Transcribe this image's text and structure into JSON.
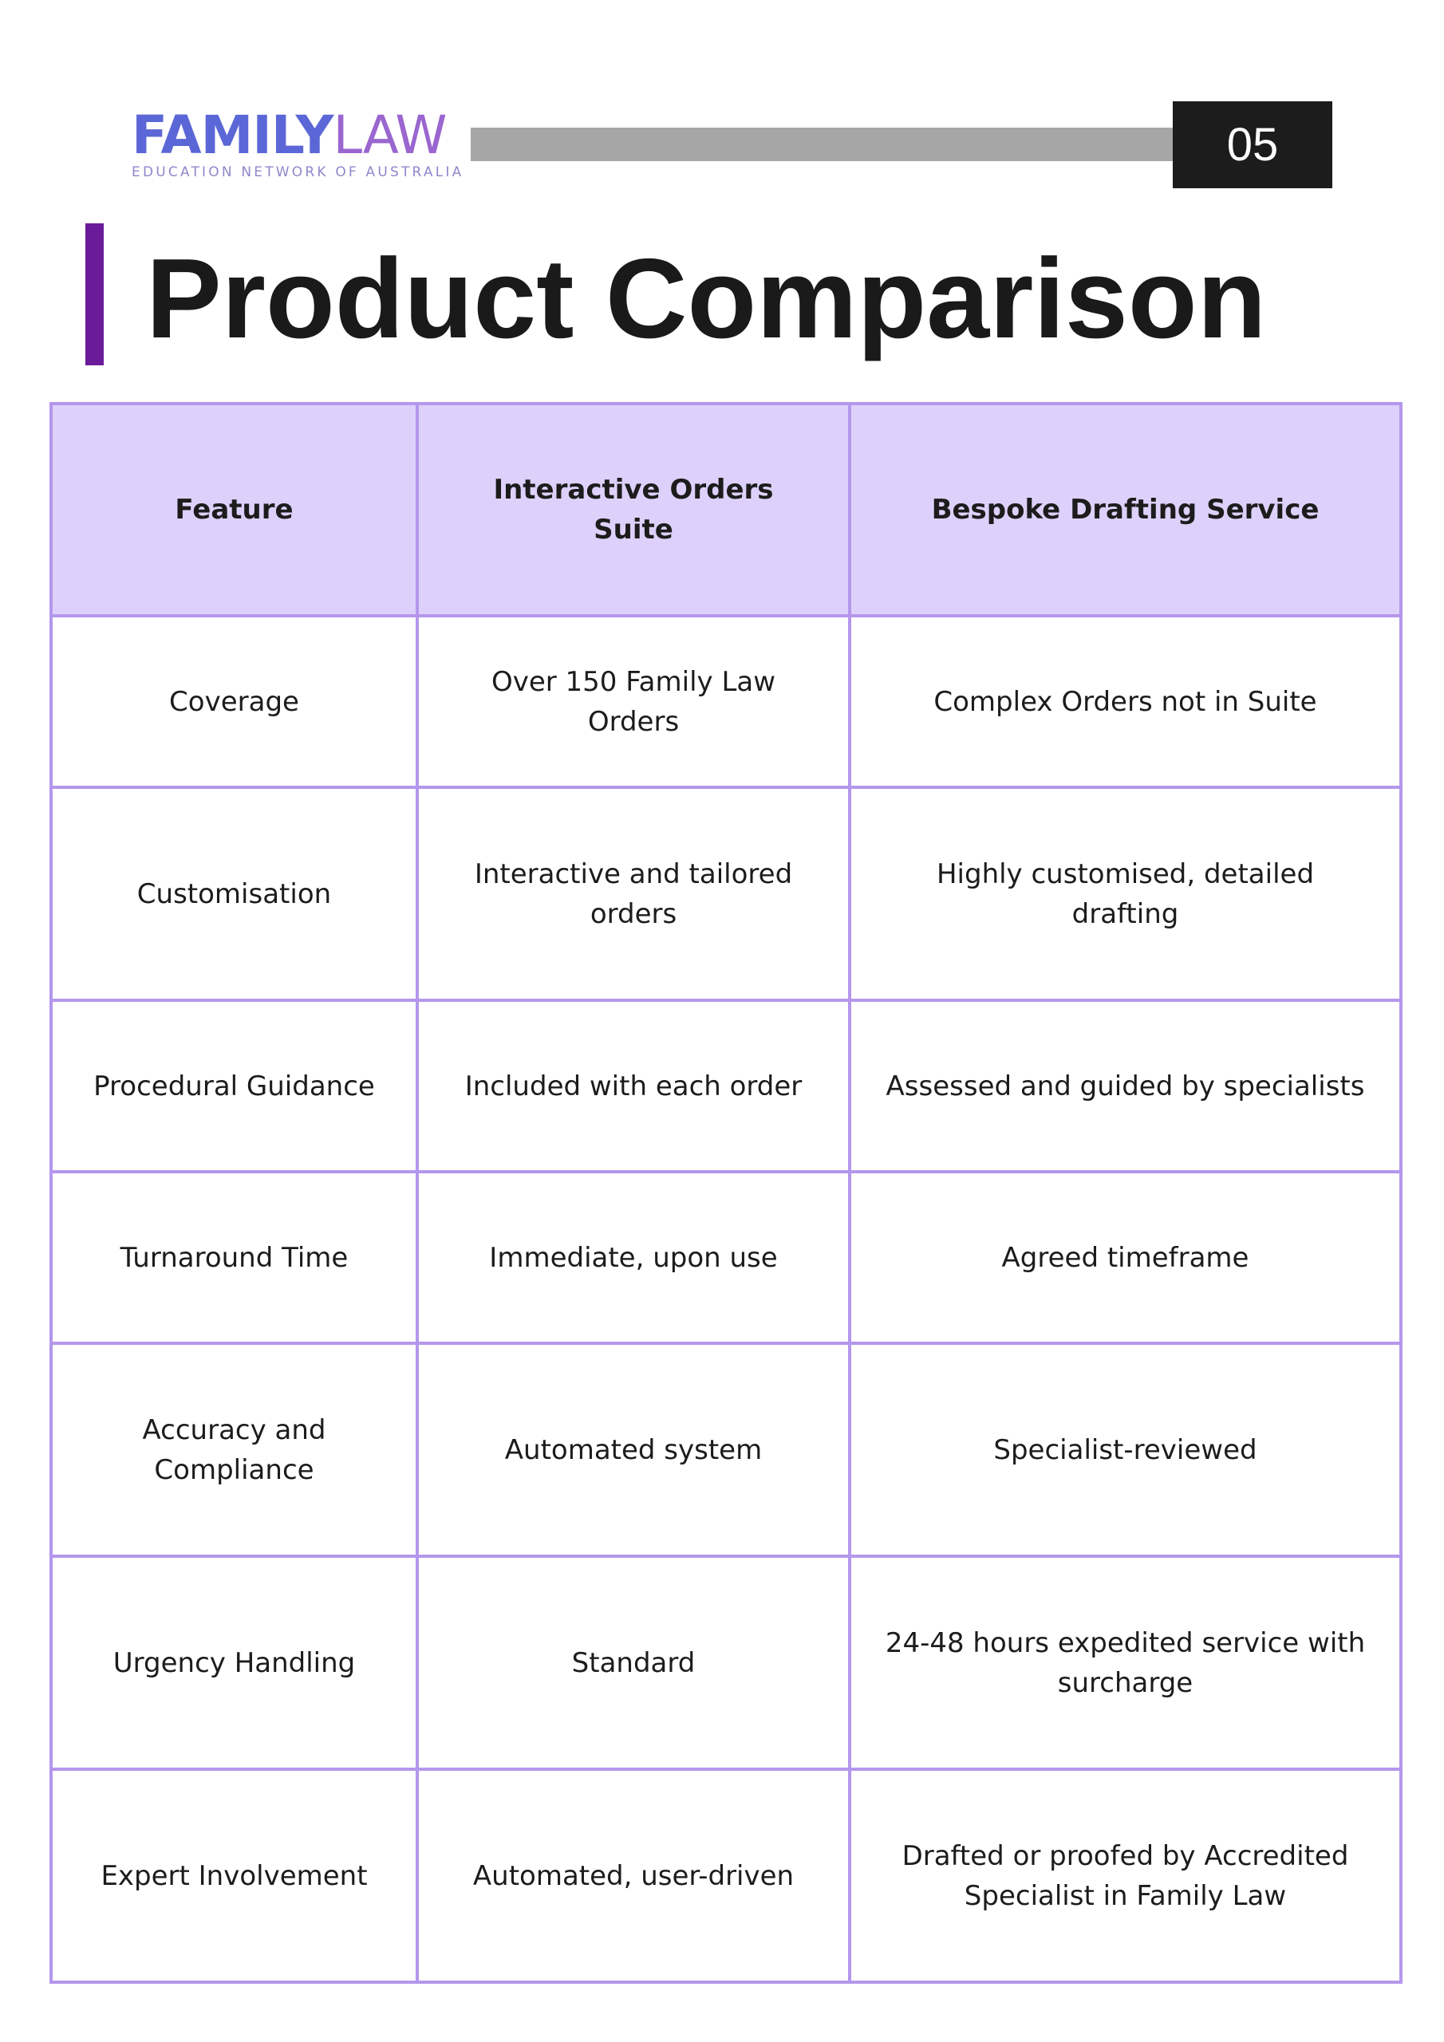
{
  "header": {
    "logo": {
      "word_bold": "FAMILY",
      "word_light": "LAW",
      "subtitle": "EDUCATION NETWORK OF AUSTRALIA",
      "colors": {
        "bold": "#5b67d6",
        "light": "#9a66cf"
      }
    },
    "page_number": "05"
  },
  "title": "Product Comparison",
  "accent_color": "#6a1b9a",
  "table": {
    "columns": [
      "Feature",
      "Interactive Orders Suite",
      "Bespoke Drafting Service"
    ],
    "header_bg": "#ddd1fb",
    "border_color": "#b497ec",
    "rows": [
      [
        "Coverage",
        "Over 150 Family Law Orders",
        "Complex Orders not in Suite"
      ],
      [
        "Customisation",
        "Interactive and tailored orders",
        "Highly customised, detailed drafting"
      ],
      [
        "Procedural Guidance",
        "Included with each order",
        "Assessed and guided by specialists"
      ],
      [
        "Turnaround Time",
        "Immediate, upon use",
        "Agreed timeframe"
      ],
      [
        "Accuracy and Compliance",
        "Automated system",
        "Specialist-reviewed"
      ],
      [
        "Urgency Handling",
        "Standard",
        "24-48 hours expedited service with surcharge"
      ],
      [
        "Expert Involvement",
        "Automated, user-driven",
        "Drafted or proofed by Accredited Specialist in Family Law"
      ]
    ]
  }
}
